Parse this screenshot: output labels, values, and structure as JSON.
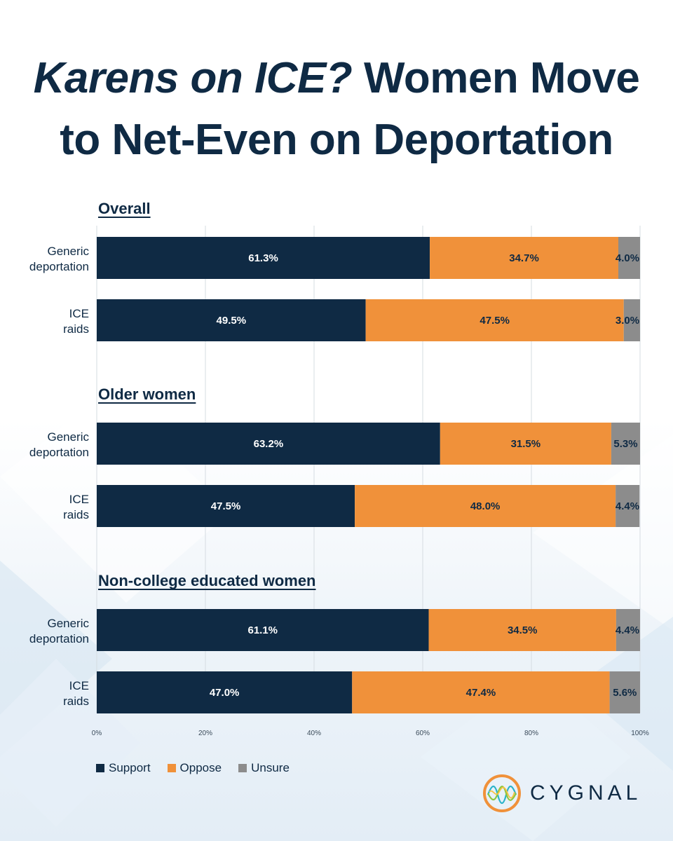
{
  "title": {
    "italic": "Karens on ICE?",
    "rest_line1": " Women Move",
    "line2": "to Net-Even on Deportation"
  },
  "legend": {
    "support": "Support",
    "oppose": "Oppose",
    "unsure": "Unsure"
  },
  "brand": {
    "name": "CYGNAL"
  },
  "colors": {
    "support": "#0f2a44",
    "oppose": "#f0913a",
    "unsure": "#8c8c8c",
    "title": "#0f2a44"
  },
  "chart_data": {
    "type": "bar",
    "orientation": "horizontal-stacked",
    "title": "Karens on ICE? Women Move to Net-Even on Deportation",
    "series_names": [
      "Support",
      "Oppose",
      "Unsure"
    ],
    "xlim": [
      0,
      100
    ],
    "x_ticks": [
      "0%",
      "20%",
      "40%",
      "60%",
      "80%",
      "100%"
    ],
    "grid": true,
    "legend_position": "bottom-left",
    "groups": [
      {
        "name": "Overall",
        "bars": [
          {
            "label_lines": [
              "Generic",
              "deportation"
            ],
            "values": [
              61.3,
              34.7,
              4.0
            ],
            "labels": [
              "61.3%",
              "34.7%",
              "4.0%"
            ]
          },
          {
            "label_lines": [
              "ICE",
              "raids"
            ],
            "values": [
              49.5,
              47.5,
              3.0
            ],
            "labels": [
              "49.5%",
              "47.5%",
              "3.0%"
            ]
          }
        ]
      },
      {
        "name": "Older women",
        "bars": [
          {
            "label_lines": [
              "Generic",
              "deportation"
            ],
            "values": [
              63.2,
              31.5,
              5.3
            ],
            "labels": [
              "63.2%",
              "31.5%",
              "5.3%"
            ]
          },
          {
            "label_lines": [
              "ICE",
              "raids"
            ],
            "values": [
              47.5,
              48.0,
              4.4
            ],
            "labels": [
              "47.5%",
              "48.0%",
              "4.4%"
            ]
          }
        ]
      },
      {
        "name": "Non-college educated women",
        "bars": [
          {
            "label_lines": [
              "Generic",
              "deportation"
            ],
            "values": [
              61.1,
              34.5,
              4.4
            ],
            "labels": [
              "61.1%",
              "34.5%",
              "4.4%"
            ]
          },
          {
            "label_lines": [
              "ICE",
              "raids"
            ],
            "values": [
              47.0,
              47.4,
              5.6
            ],
            "labels": [
              "47.0%",
              "47.4%",
              "5.6%"
            ]
          }
        ]
      }
    ]
  }
}
